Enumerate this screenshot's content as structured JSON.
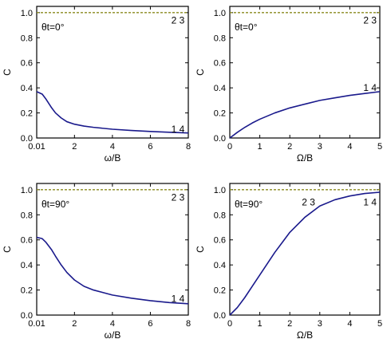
{
  "chart_data": [
    {
      "type": "line",
      "xlabel": "ω/B",
      "ylabel": "C",
      "annotation": "θt=0°",
      "xlim": [
        0.01,
        8
      ],
      "ylim": [
        0,
        1.05
      ],
      "xticks": [
        "0.01",
        "2",
        "4",
        "6",
        "8"
      ],
      "yticks": [
        "0.0",
        "0.2",
        "0.4",
        "0.6",
        "0.8",
        "1.0"
      ],
      "series": [
        {
          "x": [
            0.01,
            0.3,
            0.5,
            0.8,
            1.0,
            1.3,
            1.6,
            2.0,
            2.5,
            3.0,
            4.0,
            5.0,
            6.0,
            7.0,
            8.0
          ],
          "y": [
            0.37,
            0.35,
            0.31,
            0.24,
            0.2,
            0.16,
            0.13,
            0.11,
            0.095,
            0.085,
            0.07,
            0.06,
            0.052,
            0.046,
            0.04
          ],
          "color": "#1a1a8c",
          "label": "1 4"
        },
        {
          "x": [
            0.01,
            8
          ],
          "y": [
            1.0,
            1.0
          ],
          "color": "#8a8a1e",
          "dashed": true,
          "label": "2 3"
        }
      ],
      "curve_labels": [
        {
          "text": "2 3",
          "x": 7.1,
          "y": 0.94
        },
        {
          "text": "1 4",
          "x": 7.1,
          "y": 0.07
        }
      ]
    },
    {
      "type": "line",
      "xlabel": "Ω/B",
      "ylabel": "C",
      "annotation": "θt=0°",
      "xlim": [
        0,
        5
      ],
      "ylim": [
        0,
        1.05
      ],
      "xticks": [
        "0",
        "1",
        "2",
        "3",
        "4",
        "5"
      ],
      "yticks": [
        "0.0",
        "0.2",
        "0.4",
        "0.6",
        "0.8",
        "1.0"
      ],
      "series": [
        {
          "x": [
            0,
            0.25,
            0.5,
            0.75,
            1.0,
            1.5,
            2.0,
            2.5,
            3.0,
            3.5,
            4.0,
            4.5,
            5.0
          ],
          "y": [
            0.0,
            0.045,
            0.085,
            0.12,
            0.15,
            0.2,
            0.24,
            0.27,
            0.3,
            0.32,
            0.34,
            0.355,
            0.37
          ],
          "color": "#1a1a8c",
          "label": "1 4"
        },
        {
          "x": [
            0,
            5
          ],
          "y": [
            1.0,
            1.0
          ],
          "color": "#8a8a1e",
          "dashed": true,
          "label": "2 3"
        }
      ],
      "curve_labels": [
        {
          "text": "2 3",
          "x": 4.45,
          "y": 0.94
        },
        {
          "text": "1 4",
          "x": 4.45,
          "y": 0.4
        }
      ]
    },
    {
      "type": "line",
      "xlabel": "ω/B",
      "ylabel": "C",
      "annotation": "θt=90°",
      "xlim": [
        0.01,
        8
      ],
      "ylim": [
        0,
        1.05
      ],
      "xticks": [
        "0.01",
        "2",
        "4",
        "6",
        "8"
      ],
      "yticks": [
        "0.0",
        "0.2",
        "0.4",
        "0.6",
        "0.8",
        "1.0"
      ],
      "series": [
        {
          "x": [
            0.01,
            0.3,
            0.5,
            0.8,
            1.0,
            1.3,
            1.6,
            2.0,
            2.5,
            3.0,
            4.0,
            5.0,
            6.0,
            7.0,
            8.0
          ],
          "y": [
            0.62,
            0.61,
            0.58,
            0.52,
            0.47,
            0.4,
            0.34,
            0.28,
            0.23,
            0.2,
            0.16,
            0.135,
            0.115,
            0.1,
            0.09
          ],
          "color": "#1a1a8c",
          "label": "1 4"
        },
        {
          "x": [
            0.01,
            8
          ],
          "y": [
            1.0,
            1.0
          ],
          "color": "#8a8a1e",
          "dashed": true,
          "label": "2 3"
        }
      ],
      "curve_labels": [
        {
          "text": "2 3",
          "x": 7.1,
          "y": 0.94
        },
        {
          "text": "1 4",
          "x": 7.1,
          "y": 0.13
        }
      ]
    },
    {
      "type": "line",
      "xlabel": "Ω/B",
      "ylabel": "C",
      "annotation": "θt=90°",
      "xlim": [
        0,
        5
      ],
      "ylim": [
        0,
        1.05
      ],
      "xticks": [
        "0",
        "1",
        "2",
        "3",
        "4",
        "5"
      ],
      "yticks": [
        "0.0",
        "0.2",
        "0.4",
        "0.6",
        "0.8",
        "1.0"
      ],
      "series": [
        {
          "x": [
            0,
            0.25,
            0.5,
            0.75,
            1.0,
            1.25,
            1.5,
            1.75,
            2.0,
            2.5,
            3.0,
            3.5,
            4.0,
            4.5,
            5.0
          ],
          "y": [
            0.0,
            0.06,
            0.14,
            0.23,
            0.32,
            0.41,
            0.5,
            0.58,
            0.66,
            0.78,
            0.87,
            0.92,
            0.95,
            0.97,
            0.98
          ],
          "color": "#1a1a8c",
          "label": "1 4"
        },
        {
          "x": [
            0,
            5
          ],
          "y": [
            1.0,
            1.0
          ],
          "color": "#8a8a1e",
          "dashed": true,
          "label": "2 3"
        }
      ],
      "curve_labels": [
        {
          "text": "2 3",
          "x": 2.4,
          "y": 0.9
        },
        {
          "text": "1 4",
          "x": 4.45,
          "y": 0.9
        }
      ]
    }
  ]
}
